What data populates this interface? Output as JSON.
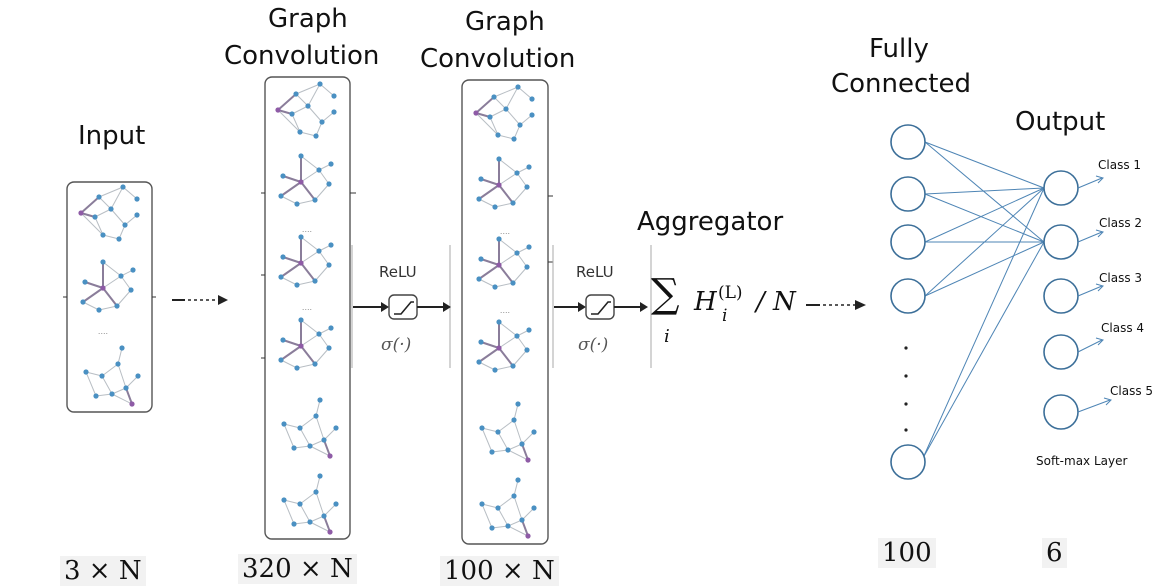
{
  "stages": {
    "input_title": "Input",
    "gc1_title_line1": "Graph",
    "gc1_title_line2": "Convolution",
    "gc2_title_line1": "Graph",
    "gc2_title_line2": "Convolution",
    "aggregator_title": "Aggregator",
    "fc_title_line1": "Fully",
    "fc_title_line2": "Connected",
    "output_title": "Output"
  },
  "activations": {
    "relu1": "ReLU",
    "sigma1": "σ(·)",
    "relu2": "ReLU",
    "sigma2": "σ(·)"
  },
  "aggregator_formula": {
    "sum": "∑",
    "index": "i",
    "h": "H",
    "sup": "(L)",
    "sub": "i",
    "div": "/ N"
  },
  "output_classes": [
    "Class 1",
    "Class 2",
    "Class 3",
    "Class 4",
    "Class 5"
  ],
  "softmax_label": "Soft-max Layer",
  "dimensions": {
    "input": "3 × N",
    "gc1": "320 × N",
    "gc2": "100 × N",
    "fc": "100",
    "output": "6"
  },
  "colors": {
    "node": "#4a90c2",
    "highlight_node": "#8e5ba6",
    "edge": "#b8bec4",
    "highlight_edge": "#8a7d9a",
    "neuron_stroke": "#3c6f99",
    "connection": "#4e85b5",
    "box": "#555555"
  }
}
